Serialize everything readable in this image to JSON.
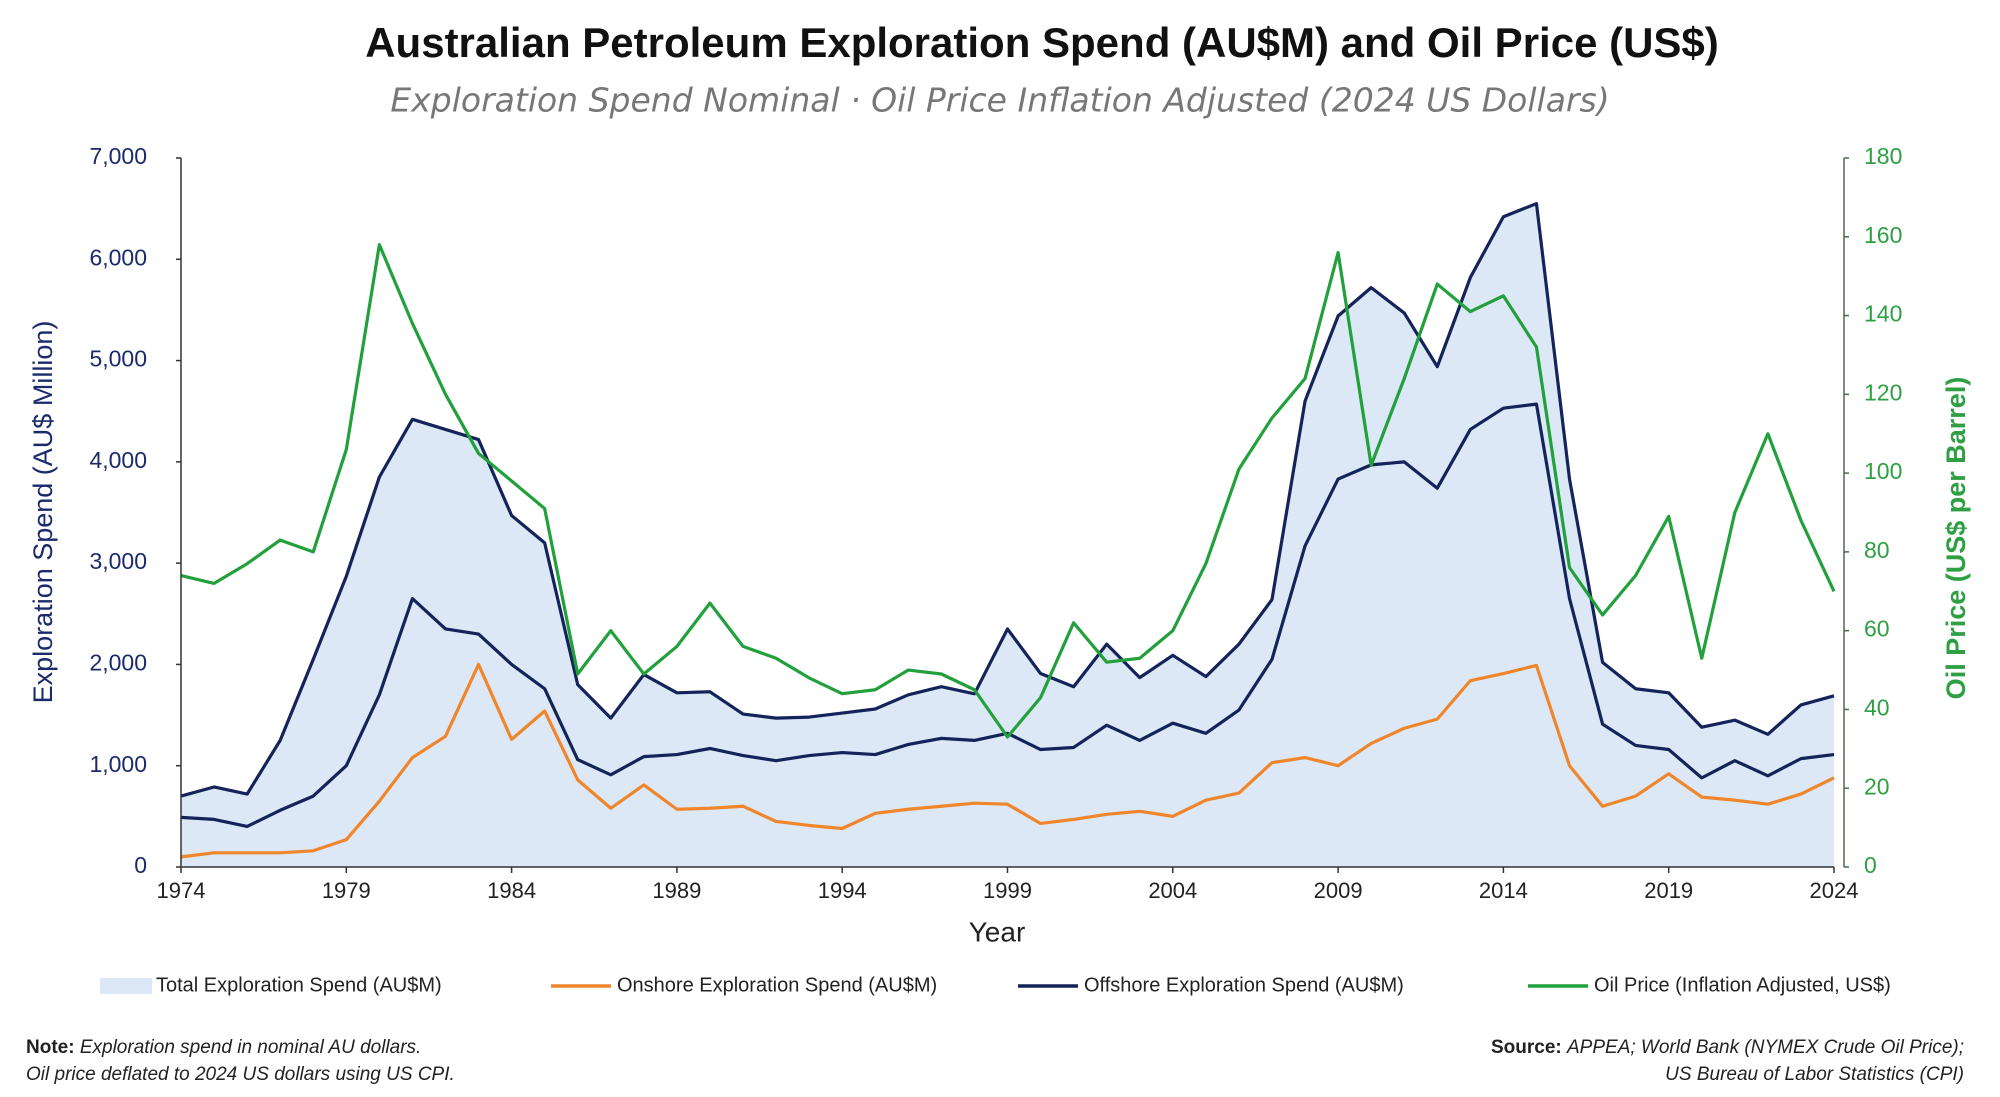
{
  "chart_data": {
    "type": "line",
    "title": "Australian Petroleum Exploration Spend (AU$M) and Oil Price (US$)",
    "subtitle": "Exploration Spend Nominal · Oil Price Inflation Adjusted (2024 US Dollars)",
    "x_label": "Year",
    "y_label": "Exploration Spend (AU$ Million)",
    "y2_label": "Oil Price (US$ per Barrel)",
    "x": [
      1974,
      1975,
      1976,
      1977,
      1978,
      1979,
      1980,
      1981,
      1982,
      1983,
      1984,
      1985,
      1986,
      1987,
      1988,
      1989,
      1990,
      1991,
      1992,
      1993,
      1994,
      1995,
      1996,
      1997,
      1998,
      1999,
      2000,
      2001,
      2002,
      2003,
      2004,
      2005,
      2006,
      2007,
      2008,
      2009,
      2010,
      2011,
      2012,
      2013,
      2014,
      2015,
      2016,
      2017,
      2018,
      2019,
      2020,
      2021,
      2022,
      2023,
      2024
    ],
    "xlim": [
      1974,
      2024
    ],
    "xticks": [
      1974,
      1979,
      1984,
      1989,
      1994,
      1999,
      2004,
      2009,
      2014,
      2019,
      2024
    ],
    "ylim": [
      0,
      7000
    ],
    "yticks": [
      0,
      {
        "value": 1000,
        "label": "1,000"
      },
      {
        "value": 2000,
        "label": "2,000"
      },
      {
        "value": 3000,
        "label": "3,000"
      },
      {
        "value": 4000,
        "label": "4,000"
      },
      {
        "value": 5000,
        "label": "5,000"
      },
      {
        "value": 6000,
        "label": "6,000"
      },
      {
        "value": 7000,
        "label": "7,000"
      }
    ],
    "y2lim": [
      0,
      180
    ],
    "y2ticks": [
      0,
      20,
      40,
      60,
      80,
      100,
      120,
      140,
      160,
      180
    ],
    "grid": false,
    "series": [
      {
        "name": "Total Exploration Spend (AU$M)",
        "type": "area",
        "color": "#dce8f5",
        "line_color": "#14235a",
        "values": [
          700,
          790,
          720,
          1250,
          2050,
          2870,
          3850,
          4420,
          4320,
          4220,
          3470,
          3200,
          1800,
          1470,
          1900,
          1720,
          1730,
          1510,
          1470,
          1480,
          1520,
          1560,
          1700,
          1780,
          1710,
          2350,
          1910,
          1780,
          2200,
          1870,
          2090,
          1880,
          2200,
          2640,
          4600,
          5440,
          5720,
          5470,
          4940,
          5820,
          6420,
          6550,
          3830,
          2020,
          1760,
          1720,
          1380,
          1450,
          1310,
          1600,
          1690
        ]
      },
      {
        "name": "Onshore Exploration Spend (AU$M)",
        "type": "line",
        "color": "#f0862b",
        "values": [
          100,
          140,
          140,
          140,
          160,
          270,
          650,
          1080,
          1290,
          2000,
          1260,
          1540,
          860,
          580,
          810,
          570,
          580,
          600,
          450,
          410,
          380,
          530,
          570,
          600,
          630,
          620,
          430,
          470,
          520,
          550,
          500,
          660,
          730,
          1030,
          1080,
          1000,
          1220,
          1370,
          1460,
          1840,
          1910,
          1990,
          1000,
          600,
          700,
          920,
          690,
          660,
          620,
          720,
          880
        ]
      },
      {
        "name": "Offshore Exploration Spend (AU$M)",
        "type": "line",
        "color": "#14235a",
        "values": [
          490,
          470,
          400,
          560,
          700,
          1000,
          1700,
          2650,
          2350,
          2300,
          2000,
          1760,
          1060,
          910,
          1090,
          1110,
          1170,
          1100,
          1050,
          1100,
          1130,
          1110,
          1210,
          1270,
          1250,
          1320,
          1160,
          1180,
          1400,
          1250,
          1420,
          1320,
          1550,
          2050,
          3170,
          3830,
          3970,
          4000,
          3740,
          4320,
          4530,
          4570,
          2650,
          1410,
          1200,
          1160,
          880,
          1050,
          900,
          1070,
          1110
        ]
      },
      {
        "name": "Oil Price (Inflation Adjusted, US$)",
        "type": "line",
        "axis": "y2",
        "color": "#22a03c",
        "values": [
          74,
          72,
          77,
          83,
          80,
          106,
          158,
          138,
          120,
          105,
          98,
          91,
          49,
          60,
          49,
          56,
          67,
          56,
          53,
          48,
          44,
          45,
          50,
          49,
          45,
          33,
          43,
          62,
          52,
          53,
          60,
          77,
          101,
          114,
          124,
          156,
          102,
          124,
          148,
          141,
          145,
          132,
          76,
          64,
          74,
          89,
          53,
          90,
          110,
          88,
          70
        ]
      }
    ],
    "note": {
      "label": "Note:",
      "lines": [
        "Exploration spend in nominal AU dollars.",
        "Oil price deflated to 2024 US dollars using US CPI."
      ]
    },
    "source": {
      "label": "Source:",
      "lines": [
        "APPEA; World Bank (NYMEX Crude Oil Price);",
        "US Bureau of Labor Statistics (CPI)"
      ]
    }
  }
}
